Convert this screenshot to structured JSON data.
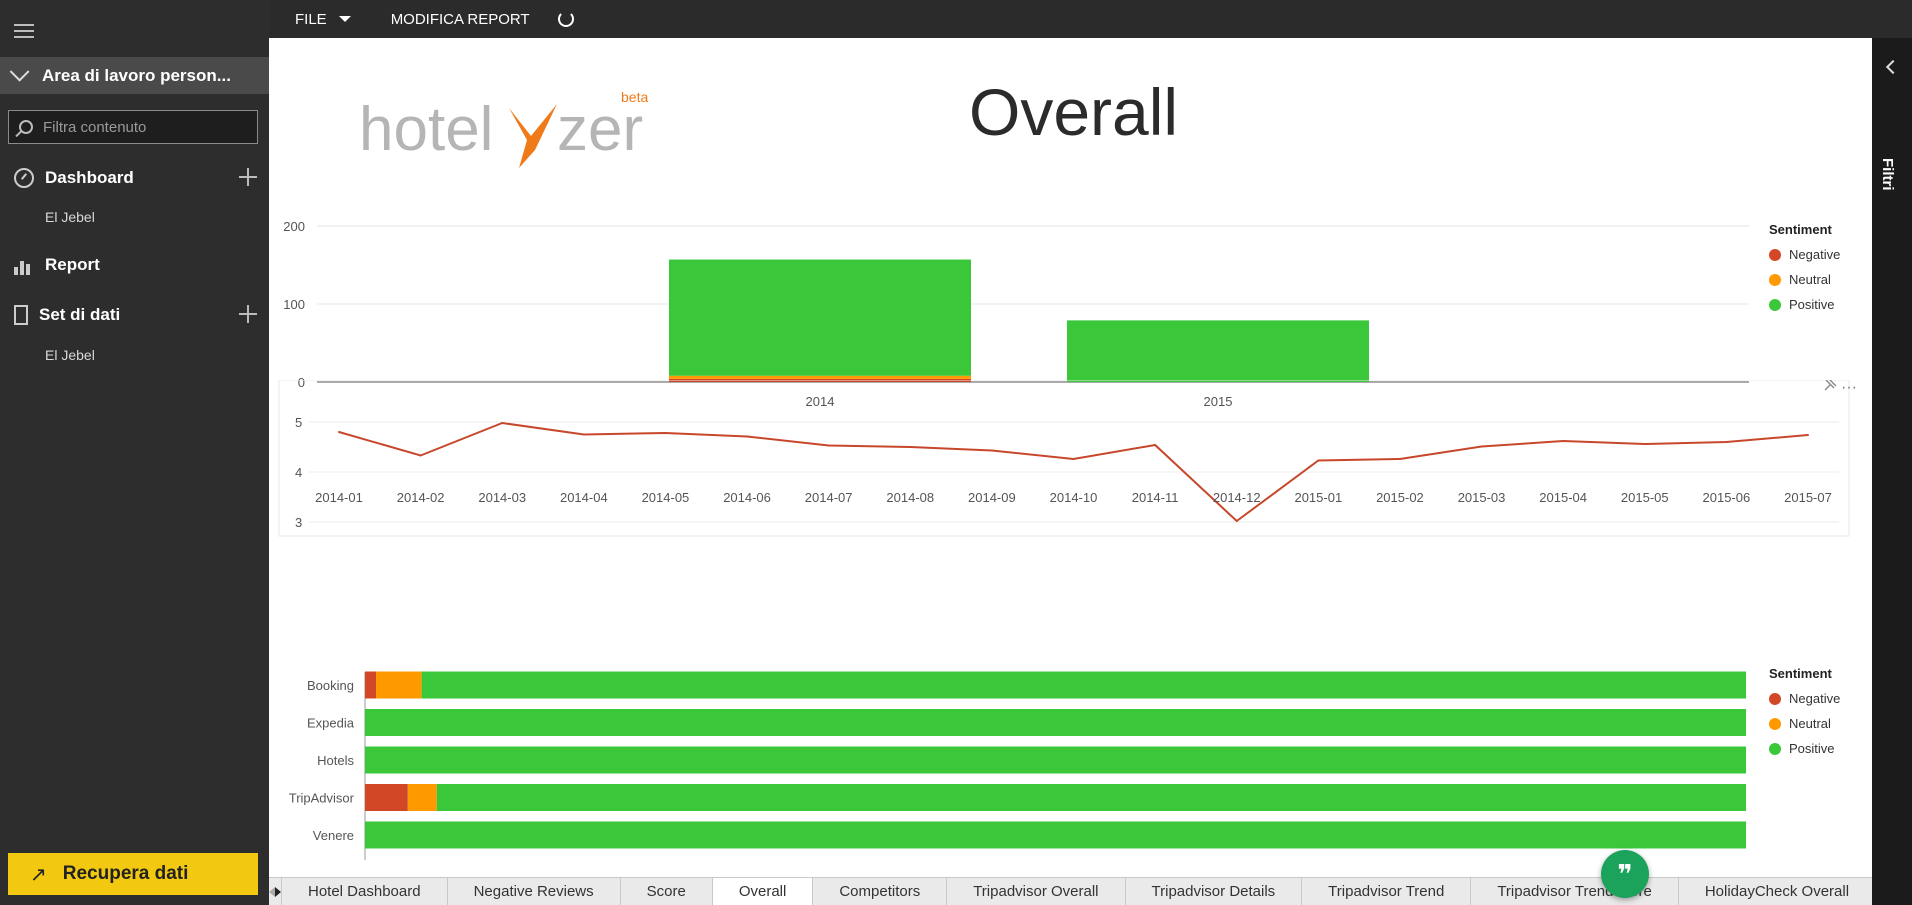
{
  "sidebar": {
    "workspace": "Area di lavoro person...",
    "filter_placeholder": "Filtra contenuto",
    "dashboard_label": "Dashboard",
    "dashboard_sub": "El Jebel",
    "report_label": "Report",
    "datasets_label": "Set di dati",
    "datasets_sub": "El Jebel",
    "get_data_label": "Recupera dati"
  },
  "topbar": {
    "file_label": "FILE",
    "edit_label": "MODIFICA REPORT"
  },
  "right_pane": {
    "filters_label": "Filtri"
  },
  "report": {
    "title": "Overall",
    "logo_text_a": "hotel",
    "logo_text_b": "zer",
    "logo_beta": "beta"
  },
  "colors": {
    "negative": "#d24726",
    "neutral": "#ff9900",
    "positive": "#3ac73a",
    "line": "#c7472b"
  },
  "chart_data": [
    {
      "type": "bar",
      "stacked": true,
      "categories": [
        "2014",
        "2015"
      ],
      "series": [
        {
          "name": "Negative",
          "values": [
            4,
            0
          ]
        },
        {
          "name": "Neutral",
          "values": [
            4,
            0
          ]
        },
        {
          "name": "Positive",
          "values": [
            149,
            79
          ]
        }
      ],
      "ylim": [
        0,
        200
      ],
      "yticks": [
        "0",
        "100",
        "200"
      ],
      "legend_title": "Sentiment",
      "legend": [
        "Negative",
        "Neutral",
        "Positive"
      ]
    },
    {
      "type": "line",
      "x": [
        "2014-01",
        "2014-02",
        "2014-03",
        "2014-04",
        "2014-05",
        "2014-06",
        "2014-07",
        "2014-08",
        "2014-09",
        "2014-10",
        "2014-11",
        "2014-12",
        "2015-01",
        "2015-02",
        "2015-03",
        "2015-04",
        "2015-05",
        "2015-06",
        "2015-07"
      ],
      "y": [
        4.8,
        4.33,
        4.98,
        4.75,
        4.78,
        4.71,
        4.53,
        4.5,
        4.43,
        4.26,
        4.54,
        3.02,
        4.23,
        4.26,
        4.51,
        4.62,
        4.56,
        4.6,
        4.74
      ],
      "ylim": [
        3,
        5
      ],
      "yticks": [
        "3",
        "4",
        "5"
      ]
    },
    {
      "type": "bar",
      "orientation": "horizontal",
      "stacked_percent": true,
      "categories": [
        "Booking",
        "Expedia",
        "Hotels",
        "TripAdvisor",
        "Venere"
      ],
      "series": [
        {
          "name": "Negative",
          "values": [
            0.8,
            0,
            0,
            3.1,
            0
          ]
        },
        {
          "name": "Neutral",
          "values": [
            3.3,
            0,
            0,
            2.1,
            0
          ]
        },
        {
          "name": "Positive",
          "values": [
            95.9,
            100,
            100,
            94.8,
            100
          ]
        }
      ],
      "xticks": [
        "0%",
        "100%"
      ],
      "legend_title": "Sentiment",
      "legend": [
        "Negative",
        "Neutral",
        "Positive"
      ]
    }
  ],
  "tabs": [
    "Hotel Dashboard",
    "Negative Reviews",
    "Score",
    "Overall",
    "Competitors",
    "Tripadvisor Overall",
    "Tripadvisor Details",
    "Tripadvisor Trend",
    "Tripadvisor Trend more",
    "HolidayCheck Overall"
  ],
  "active_tab": "Overall"
}
